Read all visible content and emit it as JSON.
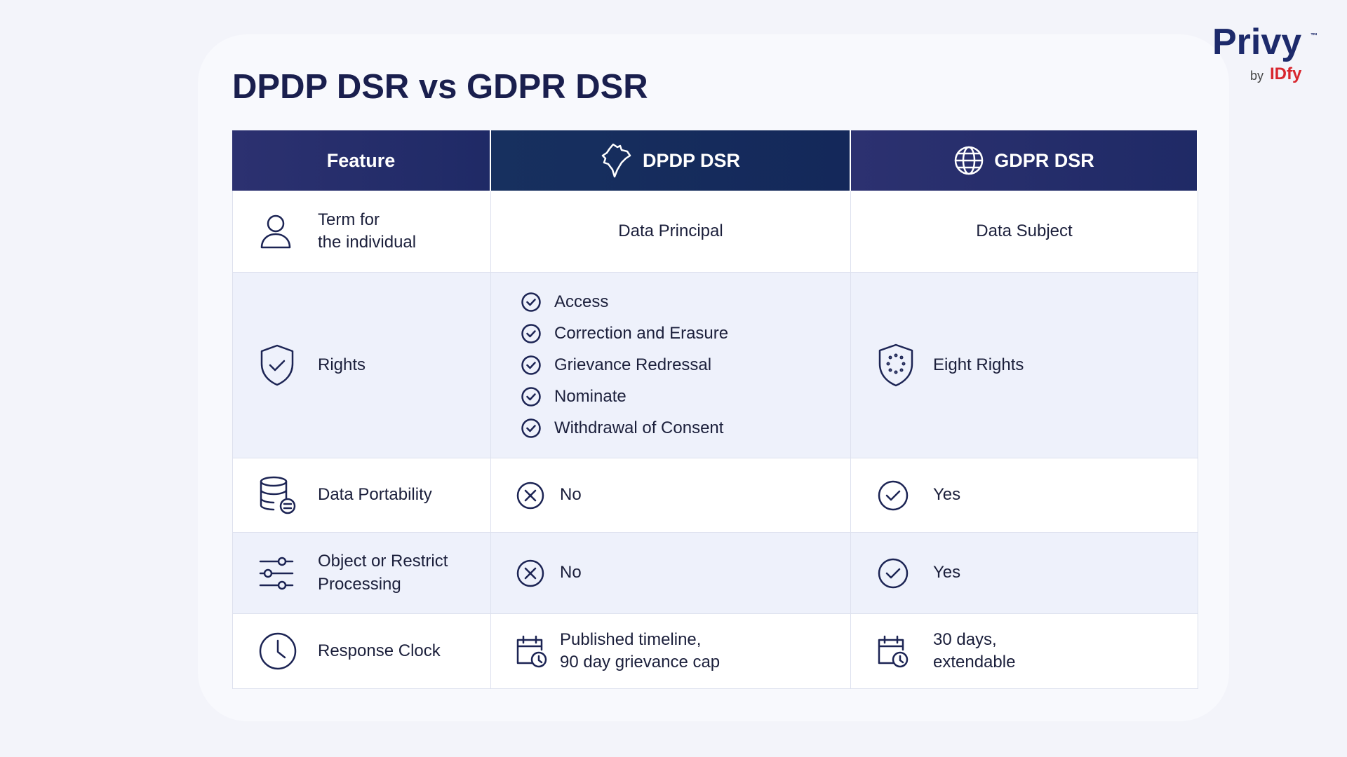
{
  "logo": {
    "name": "Privy",
    "trademark": "™",
    "by": "by",
    "brand": "IDfy"
  },
  "title": "DPDP DSR vs GDPR DSR",
  "table": {
    "headers": [
      "Feature",
      "DPDP DSR",
      "GDPR DSR"
    ],
    "rows": [
      {
        "feature": "Term for\nthe individual",
        "dpdp": "Data Principal",
        "gdpr": "Data Subject"
      },
      {
        "feature": "Rights",
        "dpdp": [
          "Access",
          "Correction and Erasure",
          "Grievance Redressal",
          "Nominate",
          "Withdrawal of Consent"
        ],
        "gdpr": "Eight Rights"
      },
      {
        "feature": "Data Portability",
        "dpdp": "No",
        "gdpr": "Yes"
      },
      {
        "feature": "Object or Restrict\nProcessing",
        "dpdp": "No",
        "gdpr": "Yes"
      },
      {
        "feature": "Response Clock",
        "dpdp": "Published timeline,\n90 day grievance cap",
        "gdpr": "30 days,\nextendable"
      }
    ]
  }
}
